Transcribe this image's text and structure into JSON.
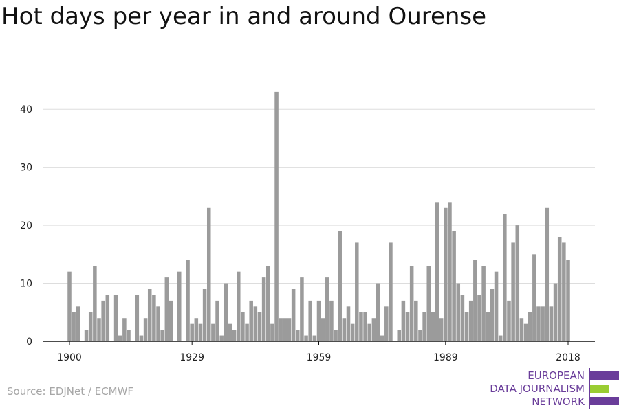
{
  "title": "Hot days per year in and around Ourense",
  "source": "Source: EDJNet / ECMWF",
  "logo": {
    "lines": [
      "EUROPEAN",
      "DATA JOURNALISM",
      "NETWORK"
    ],
    "colors": {
      "purple": "#6a3d9a",
      "green": "#9acd32"
    }
  },
  "colors": {
    "bar": "#9b9b9b",
    "grid": "#dddddd",
    "axis": "#111111"
  },
  "chart_data": {
    "type": "bar",
    "x_start": 1900,
    "x_end": 2018,
    "xticks": [
      1900,
      1929,
      1959,
      1989,
      2018
    ],
    "yticks": [
      0,
      10,
      20,
      30,
      40
    ],
    "ylim": [
      0,
      45
    ],
    "grid": true,
    "xlabel": "",
    "ylabel": "",
    "values": [
      12,
      5,
      6,
      0,
      2,
      5,
      13,
      4,
      7,
      8,
      0,
      8,
      1,
      4,
      2,
      0,
      8,
      1,
      4,
      9,
      8,
      6,
      2,
      11,
      7,
      0,
      12,
      0,
      14,
      3,
      4,
      3,
      9,
      23,
      3,
      7,
      1,
      10,
      3,
      2,
      12,
      5,
      3,
      7,
      6,
      5,
      11,
      13,
      3,
      43,
      4,
      4,
      4,
      9,
      2,
      11,
      1,
      7,
      1,
      7,
      4,
      11,
      7,
      2,
      19,
      4,
      6,
      3,
      17,
      5,
      5,
      3,
      4,
      10,
      1,
      6,
      17,
      0,
      2,
      7,
      5,
      13,
      7,
      2,
      5,
      13,
      5,
      24,
      4,
      23,
      24,
      19,
      10,
      8,
      5,
      7,
      14,
      8,
      13,
      5,
      9,
      12,
      1,
      22,
      7,
      17,
      20,
      4,
      3,
      5,
      15,
      6,
      6,
      23,
      6,
      10,
      18,
      17,
      14
    ]
  }
}
